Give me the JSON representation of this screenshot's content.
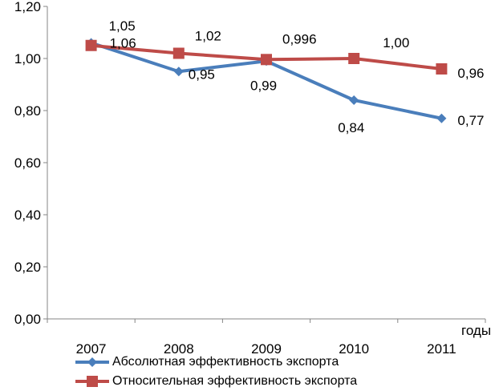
{
  "chart_data": {
    "type": "line",
    "categories": [
      "2007",
      "2008",
      "2009",
      "2010",
      "2011"
    ],
    "xlabel": "годы",
    "ylim": [
      0,
      1.2
    ],
    "yticks": [
      "0,00",
      "0,20",
      "0,40",
      "0,60",
      "0,80",
      "1,00",
      "1,20"
    ],
    "grid": false,
    "legend_position": "bottom",
    "series": [
      {
        "name": "Абсолютная эффективность экспорта",
        "color": "#4a7ebb",
        "marker": "diamond",
        "values": [
          1.06,
          0.95,
          0.99,
          0.84,
          0.77
        ],
        "labels": [
          "1,06",
          "0,95",
          "0,99",
          "0,84",
          "0,77"
        ]
      },
      {
        "name": "Относительная эффективность экспорта",
        "color": "#be4b48",
        "marker": "square",
        "values": [
          1.05,
          1.02,
          0.996,
          1.0,
          0.96
        ],
        "labels": [
          "1,05",
          "1,02",
          "0,996",
          "1,00",
          "0,96"
        ]
      }
    ]
  }
}
